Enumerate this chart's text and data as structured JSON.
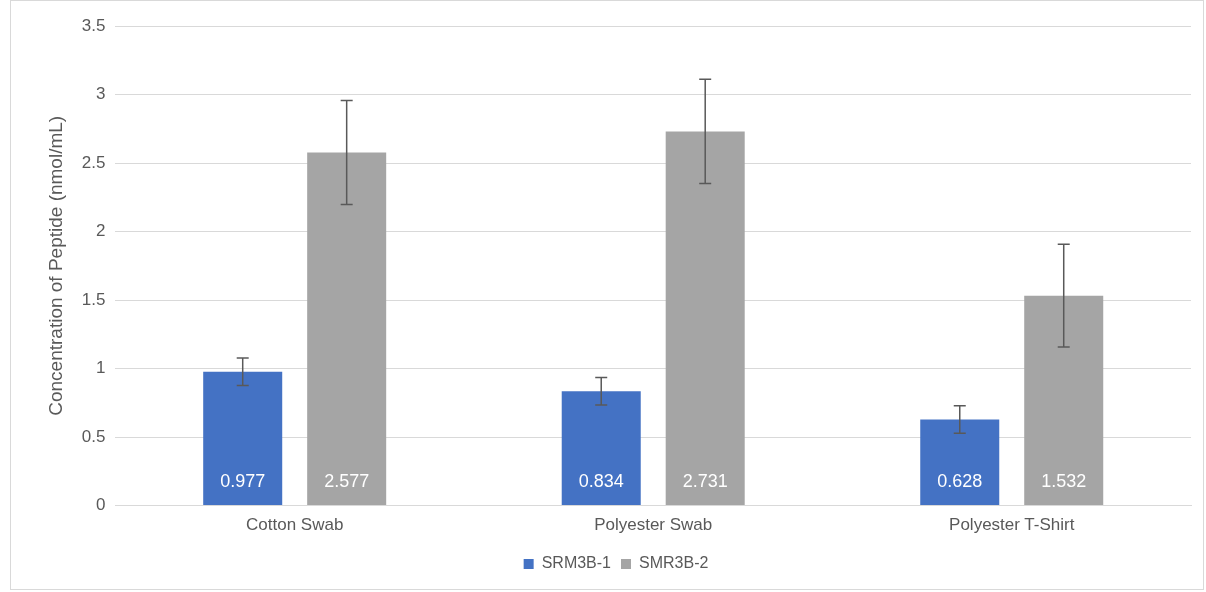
{
  "chart_data": {
    "type": "bar",
    "ylabel": "Concentration of Peptide (nmol/mL)",
    "categories": [
      "Cotton Swab",
      "Polyester Swab",
      "Polyester T-Shirt"
    ],
    "series": [
      {
        "name": "SRM3B-1",
        "color": "#4472c4",
        "values": [
          0.977,
          0.834,
          0.628
        ],
        "errors": [
          0.1,
          0.1,
          0.1
        ]
      },
      {
        "name": "SMR3B-2",
        "color": "#a5a5a5",
        "values": [
          2.577,
          2.731,
          1.532
        ],
        "errors": [
          0.38,
          0.38,
          0.375
        ]
      }
    ],
    "ylim": [
      0,
      3.5
    ],
    "yticks": [
      0,
      0.5,
      1,
      1.5,
      2,
      2.5,
      3,
      3.5
    ],
    "grid": "y",
    "legend": "bottom",
    "data_labels": true
  }
}
